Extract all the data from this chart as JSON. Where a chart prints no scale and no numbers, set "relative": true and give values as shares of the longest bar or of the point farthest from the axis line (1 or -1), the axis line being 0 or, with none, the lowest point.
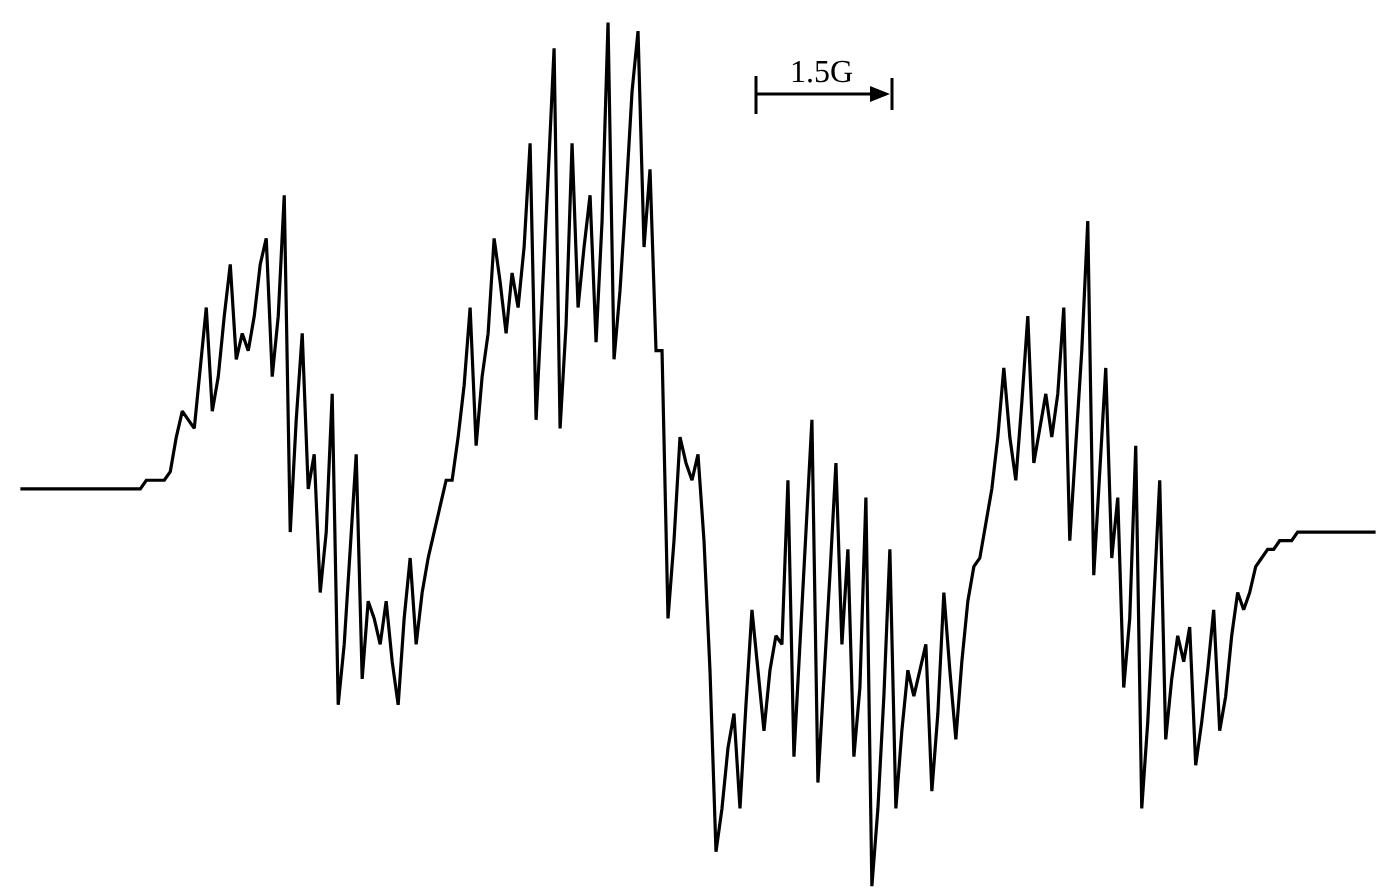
{
  "chart_data": {
    "type": "line",
    "relative": true,
    "grid": false,
    "line_style": "solid",
    "annotations": [
      "1.5G"
    ],
    "categories": [
      null,
      null,
      null,
      null,
      null,
      null,
      null,
      null,
      null,
      null,
      null,
      null,
      null,
      null,
      null,
      null,
      null,
      null,
      null,
      null,
      null,
      null,
      null,
      null,
      null,
      null,
      null,
      null,
      null,
      null,
      null,
      null,
      null,
      null,
      null,
      null,
      null,
      null,
      null,
      null,
      null,
      null,
      null,
      null,
      null,
      null,
      null,
      null,
      null,
      null,
      null,
      null,
      null,
      null,
      null,
      null,
      null,
      null,
      null,
      null,
      null,
      null,
      null,
      null,
      null,
      null,
      null,
      null,
      null,
      null,
      null,
      null,
      null,
      null,
      null,
      null,
      null,
      null,
      null,
      null,
      null,
      null,
      null,
      null,
      null,
      null,
      null,
      null,
      null,
      null,
      null,
      null,
      null,
      null,
      null,
      null,
      null,
      null,
      null,
      null,
      null,
      null,
      null,
      null,
      null,
      null,
      null,
      null,
      null,
      null,
      null,
      null,
      null,
      null,
      null,
      null,
      null,
      null,
      null,
      null,
      null,
      null,
      null,
      null,
      null,
      null,
      null,
      null,
      null,
      null,
      null,
      null,
      null,
      null,
      null,
      null,
      null,
      null,
      null,
      null,
      null,
      null,
      null,
      null,
      null,
      null,
      null,
      null,
      null,
      null,
      null,
      null,
      null,
      null,
      null,
      null,
      null,
      null,
      null,
      null,
      null,
      null,
      null,
      null,
      null,
      null,
      null,
      null,
      null,
      null,
      null,
      null,
      null,
      null,
      null,
      null,
      null,
      null,
      null,
      null,
      null,
      null,
      null,
      null,
      null,
      null,
      null,
      null,
      null,
      null,
      null,
      null,
      null,
      null,
      null,
      null,
      null,
      null,
      null,
      null,
      null,
      null,
      null,
      null,
      null,
      null,
      null,
      null,
      null,
      null,
      null,
      null,
      null,
      null,
      null,
      null,
      null,
      null,
      null,
      null,
      null,
      null,
      null,
      null,
      null,
      null,
      null
    ],
    "series": [
      {
        "color": "#000000",
        "values": [
          0.46,
          0.46,
          0.46,
          0.46,
          0.46,
          0.46,
          0.46,
          0.46,
          0.46,
          0.46,
          0.46,
          0.46,
          0.46,
          0.46,
          0.46,
          0.46,
          0.46,
          0.46,
          0.46,
          0.46,
          0.46,
          0.47,
          0.47,
          0.47,
          0.47,
          0.48,
          0.52,
          0.55,
          0.54,
          0.53,
          0.6,
          0.67,
          0.55,
          0.59,
          0.66,
          0.72,
          0.61,
          0.64,
          0.62,
          0.66,
          0.72,
          0.75,
          0.59,
          0.66,
          0.8,
          0.41,
          0.54,
          0.64,
          0.46,
          0.5,
          0.34,
          0.41,
          0.57,
          0.21,
          0.28,
          0.39,
          0.5,
          0.24,
          0.33,
          0.31,
          0.28,
          0.33,
          0.26,
          0.21,
          0.31,
          0.38,
          0.28,
          0.34,
          0.38,
          0.41,
          0.44,
          0.47,
          0.47,
          0.52,
          0.58,
          0.67,
          0.51,
          0.59,
          0.64,
          0.75,
          0.7,
          0.64,
          0.71,
          0.67,
          0.74,
          0.86,
          0.54,
          0.68,
          0.82,
          0.97,
          0.53,
          0.65,
          0.86,
          0.67,
          0.74,
          0.8,
          0.63,
          0.77,
          1.0,
          0.61,
          0.69,
          0.8,
          0.92,
          0.99,
          0.74,
          0.83,
          0.62,
          0.62,
          0.31,
          0.4,
          0.52,
          0.49,
          0.47,
          0.5,
          0.4,
          0.25,
          0.04,
          0.09,
          0.16,
          0.2,
          0.09,
          0.21,
          0.32,
          0.25,
          0.18,
          0.25,
          0.29,
          0.28,
          0.47,
          0.15,
          0.28,
          0.41,
          0.54,
          0.12,
          0.24,
          0.36,
          0.49,
          0.28,
          0.39,
          0.15,
          0.23,
          0.45,
          0,
          0.09,
          0.22,
          0.39,
          0.09,
          0.18,
          0.25,
          0.22,
          0.25,
          0.28,
          0.11,
          0.2,
          0.34,
          0.25,
          0.17,
          0.26,
          0.33,
          0.37,
          0.38,
          0.42,
          0.46,
          0.52,
          0.6,
          0.52,
          0.47,
          0.56,
          0.66,
          0.49,
          0.53,
          0.57,
          0.52,
          0.57,
          0.67,
          0.4,
          0.51,
          0.62,
          0.77,
          0.36,
          0.48,
          0.6,
          0.38,
          0.45,
          0.23,
          0.31,
          0.51,
          0.09,
          0.19,
          0.33,
          0.47,
          0.17,
          0.24,
          0.29,
          0.26,
          0.3,
          0.14,
          0.19,
          0.25,
          0.32,
          0.18,
          0.22,
          0.29,
          0.34,
          0.32,
          0.34,
          0.37,
          0.38,
          0.39,
          0.39,
          0.4,
          0.4,
          0.4,
          0.41,
          0.41,
          0.41,
          0.41,
          0.41,
          0.41,
          0.41,
          0.41,
          0.41,
          0.41,
          0.41,
          0.41,
          0.41,
          0.41
        ]
      }
    ]
  }
}
